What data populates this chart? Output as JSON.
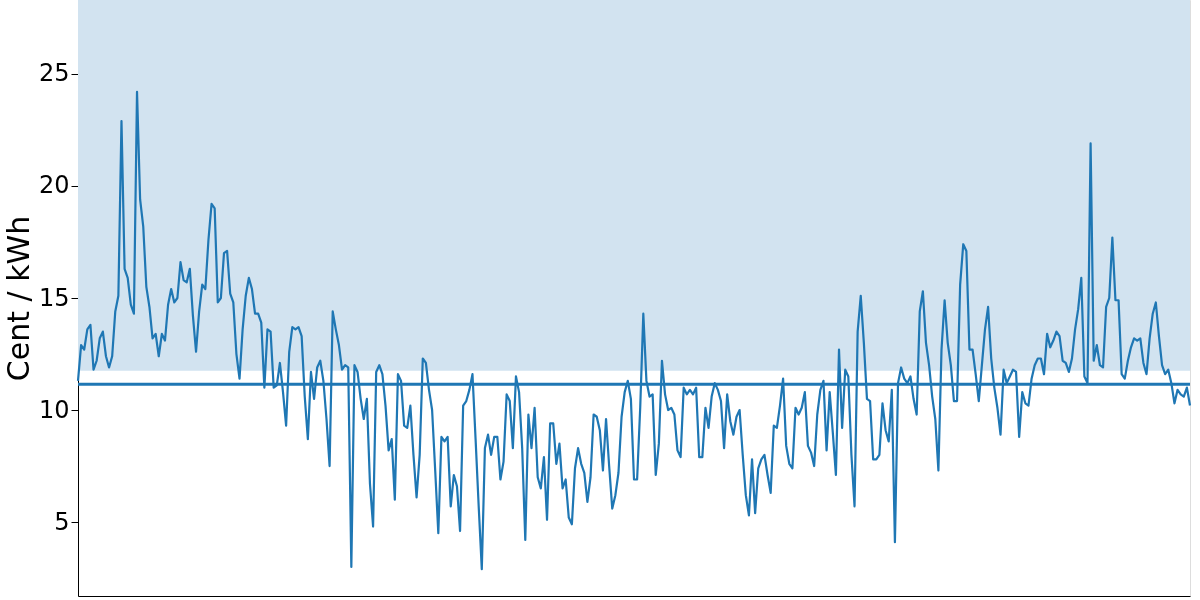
{
  "chart_data": {
    "type": "line",
    "ylabel": "Cent / kWh",
    "categories": [
      null,
      null,
      null,
      null,
      null,
      null,
      null,
      null,
      null,
      null,
      null,
      null,
      null,
      null,
      null,
      null,
      null,
      null,
      null,
      null,
      null,
      null,
      null,
      null,
      null,
      null,
      null,
      null,
      null,
      null,
      null,
      null,
      null,
      null,
      null,
      null,
      null,
      null,
      null,
      null,
      null,
      null,
      null,
      null,
      null,
      null,
      null,
      null,
      null,
      null,
      null,
      null,
      null,
      null,
      null,
      null,
      null,
      null,
      null,
      null,
      null,
      null,
      null,
      null,
      null,
      null,
      null,
      null,
      null,
      null,
      null,
      null,
      null,
      null,
      null,
      null,
      null,
      null,
      null,
      null,
      null,
      null,
      null,
      null,
      null,
      null,
      null,
      null,
      null,
      null,
      null,
      null,
      null,
      null,
      null,
      null,
      null,
      null,
      null,
      null,
      null,
      null,
      null,
      null,
      null,
      null,
      null,
      null,
      null,
      null,
      null,
      null,
      null,
      null,
      null,
      null,
      null,
      null,
      null,
      null,
      null,
      null,
      null,
      null,
      null,
      null,
      null,
      null,
      null,
      null,
      null,
      null,
      null,
      null,
      null,
      null,
      null,
      null,
      null,
      null,
      null,
      null,
      null,
      null,
      null,
      null,
      null,
      null,
      null,
      null,
      null,
      null,
      null,
      null,
      null,
      null,
      null,
      null,
      null,
      null,
      null,
      null,
      null,
      null,
      null,
      null,
      null,
      null,
      null,
      null,
      null,
      null,
      null,
      null,
      null,
      null,
      null,
      null,
      null,
      null,
      null,
      null,
      null,
      null,
      null,
      null,
      null,
      null,
      null,
      null,
      null,
      null,
      null,
      null,
      null,
      null,
      null,
      null,
      null,
      null,
      null,
      null,
      null,
      null,
      null,
      null,
      null,
      null,
      null,
      null,
      null,
      null,
      null,
      null,
      null,
      null,
      null,
      null,
      null,
      null,
      null,
      null,
      null,
      null,
      null,
      null,
      null,
      null,
      null,
      null,
      null,
      null,
      null,
      null,
      null,
      null,
      null,
      null,
      null,
      null,
      null,
      null,
      null,
      null,
      null,
      null,
      null,
      null,
      null,
      null,
      null,
      null,
      null,
      null,
      null,
      null,
      null,
      null,
      null,
      null,
      null,
      null,
      null,
      null,
      null,
      null,
      null,
      null,
      null,
      null,
      null,
      null,
      null,
      null,
      null,
      null,
      null,
      null,
      null,
      null,
      null,
      null,
      null,
      null,
      null,
      null,
      null,
      null,
      null,
      null,
      null,
      null,
      null,
      null,
      null,
      null,
      null,
      null,
      null,
      null,
      null,
      null,
      null,
      null,
      null,
      null,
      null,
      null,
      null,
      null,
      null,
      null,
      null,
      null,
      null,
      null,
      null,
      null,
      null,
      null,
      null,
      null,
      null,
      null,
      null,
      null,
      null,
      null,
      null,
      null,
      null,
      null,
      null,
      null,
      null,
      null,
      null,
      null,
      null,
      null,
      null,
      null,
      null,
      null,
      null,
      null,
      null,
      null,
      null,
      null,
      null,
      null,
      null,
      null,
      null,
      null,
      null,
      null,
      null
    ],
    "series": [
      {
        "color": "#1f77b4",
        "values": [
          11.3,
          12.9,
          12.7,
          13.6,
          13.8,
          11.8,
          12.2,
          13.2,
          13.5,
          12.4,
          11.9,
          12.4,
          14.4,
          15.1,
          22.9,
          16.3,
          15.9,
          14.7,
          14.3,
          24.2,
          19.4,
          18.2,
          15.5,
          14.6,
          13.2,
          13.4,
          12.4,
          13.4,
          13.1,
          14.7,
          15.4,
          14.8,
          15.0,
          16.6,
          15.8,
          15.7,
          16.3,
          14.2,
          12.6,
          14.4,
          15.6,
          15.4,
          17.6,
          19.2,
          19.0,
          14.8,
          15.0,
          17.0,
          17.1,
          15.2,
          14.8,
          12.5,
          11.4,
          13.6,
          15.1,
          15.9,
          15.4,
          14.3,
          14.3,
          13.9,
          11.0,
          13.6,
          13.5,
          11.0,
          11.1,
          12.1,
          10.8,
          9.3,
          12.6,
          13.7,
          13.6,
          13.7,
          13.3,
          10.6,
          8.7,
          11.7,
          10.5,
          11.9,
          12.2,
          11.3,
          9.6,
          7.5,
          14.4,
          13.6,
          12.9,
          11.8,
          12.0,
          11.9,
          3.0,
          12.0,
          11.7,
          10.5,
          9.6,
          10.5,
          6.7,
          4.8,
          11.7,
          12.0,
          11.6,
          10.2,
          8.2,
          8.7,
          6.0,
          11.6,
          11.3,
          9.3,
          9.2,
          10.2,
          8.0,
          6.1,
          8.0,
          12.3,
          12.1,
          10.9,
          10.0,
          7.3,
          4.5,
          8.8,
          8.6,
          8.8,
          5.7,
          7.1,
          6.6,
          4.6,
          10.2,
          10.4,
          10.9,
          11.6,
          8.7,
          5.7,
          2.9,
          8.3,
          8.9,
          8.0,
          8.8,
          8.8,
          6.9,
          7.7,
          10.7,
          10.4,
          8.3,
          11.5,
          10.8,
          8.3,
          4.2,
          9.8,
          8.3,
          10.1,
          7.0,
          6.5,
          7.9,
          5.1,
          9.4,
          9.4,
          7.6,
          8.5,
          6.5,
          6.9,
          5.2,
          4.9,
          7.4,
          8.3,
          7.6,
          7.2,
          5.9,
          7.0,
          9.8,
          9.7,
          9.1,
          7.3,
          9.6,
          7.5,
          5.6,
          6.2,
          7.2,
          9.7,
          10.8,
          11.3,
          10.5,
          6.9,
          6.9,
          10.1,
          14.3,
          11.3,
          10.6,
          10.7,
          7.1,
          8.5,
          12.2,
          10.7,
          10.0,
          10.1,
          9.8,
          8.2,
          7.9,
          11.0,
          10.7,
          10.9,
          10.7,
          11.0,
          7.9,
          7.9,
          10.1,
          9.2,
          10.6,
          11.2,
          10.9,
          10.4,
          8.3,
          10.7,
          9.5,
          8.9,
          9.7,
          10.0,
          8.0,
          6.2,
          5.3,
          7.8,
          5.4,
          7.4,
          7.8,
          8.0,
          7.1,
          6.3,
          9.3,
          9.2,
          10.2,
          11.4,
          8.4,
          7.6,
          7.4,
          10.1,
          9.8,
          10.1,
          10.8,
          8.4,
          8.1,
          7.5,
          9.8,
          10.9,
          11.3,
          8.2,
          10.8,
          9.0,
          7.1,
          12.7,
          9.2,
          11.8,
          11.5,
          8.0,
          5.7,
          13.5,
          15.1,
          13.0,
          10.5,
          10.4,
          7.8,
          7.8,
          8.0,
          10.3,
          9.1,
          8.6,
          10.9,
          4.1,
          11.2,
          11.9,
          11.4,
          11.2,
          11.5,
          10.5,
          9.8,
          14.4,
          15.3,
          13.0,
          12.0,
          10.6,
          9.6,
          7.3,
          12.7,
          14.9,
          13.0,
          12.0,
          10.4,
          10.4,
          15.6,
          17.4,
          17.1,
          12.7,
          12.7,
          11.6,
          10.4,
          12.0,
          13.6,
          14.6,
          12.3,
          11.0,
          10.1,
          8.9,
          11.8,
          11.2,
          11.5,
          11.8,
          11.7,
          8.8,
          10.8,
          10.3,
          10.2,
          11.4,
          12.0,
          12.3,
          12.3,
          11.6,
          13.4,
          12.8,
          13.1,
          13.5,
          13.3,
          12.2,
          12.1,
          11.7,
          12.3,
          13.6,
          14.5,
          15.9,
          11.5,
          11.2,
          21.9,
          12.2,
          12.9,
          12.0,
          11.9,
          14.6,
          15.0,
          17.7,
          14.9,
          14.9,
          11.6,
          11.4,
          12.2,
          12.8,
          13.2,
          13.1,
          13.2,
          12.1,
          11.6,
          13.2,
          14.3,
          14.8,
          13.3,
          12.0,
          11.6,
          11.8,
          11.2,
          10.3,
          10.9,
          10.7,
          10.6,
          11.0,
          10.2
        ]
      }
    ],
    "ylim": [
      1.7,
      28.3
    ],
    "yticks": [
      5,
      10,
      15,
      20,
      25
    ],
    "tick_labels": "y",
    "grid": false,
    "legend": false,
    "marker": "none",
    "line_style": "solid",
    "ref_lines": [
      {
        "axis": "y",
        "value": 11.15,
        "color": "#1f77b4",
        "line_style": "solid"
      }
    ],
    "bands": [
      {
        "axis": "y",
        "from": 11.75,
        "to": 28.3,
        "color": "#d2e3f0"
      }
    ]
  }
}
